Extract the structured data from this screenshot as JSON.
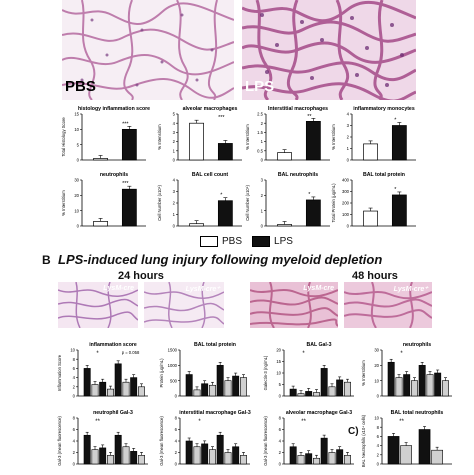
{
  "panel_a": {
    "histology_labels": [
      "PBS",
      "LPS"
    ]
  },
  "legend": {
    "items": [
      {
        "label": "PBS",
        "color": "#ffffff"
      },
      {
        "label": "LPS",
        "color": "#111111"
      }
    ]
  },
  "panel_b": {
    "letter": "B",
    "title": "LPS-induced lung injury following myeloid depletion",
    "time_24": "24 hours",
    "time_48": "48 hours",
    "histology_tags": [
      "LysM-cre",
      "LysM-cre⁺",
      "LysM-cre",
      "LysM-cre⁺"
    ]
  },
  "panel_c": {
    "letter": "C)"
  },
  "chart_data": [
    {
      "type": "bar",
      "title": "histology inflammation score",
      "ylabel": "Total Histology Score",
      "categories": [
        "PBS",
        "LPS"
      ],
      "values": [
        0.5,
        10
      ],
      "ylim": [
        0,
        15
      ],
      "yticks": [
        "0",
        "5",
        "10",
        "15"
      ],
      "sig": "***"
    },
    {
      "type": "bar",
      "title": "alveolar macrophages",
      "ylabel": "% Intensitium",
      "categories": [
        "PBS",
        "LPS"
      ],
      "values": [
        4,
        1.8
      ],
      "ylim": [
        0,
        5
      ],
      "yticks": [
        "0",
        "1",
        "2",
        "3",
        "4",
        "5"
      ],
      "sig": "***"
    },
    {
      "type": "bar",
      "title": "Interstitial macrophages",
      "ylabel": "% Interstitium",
      "categories": [
        "PBS",
        "LPS"
      ],
      "values": [
        0.4,
        2.1
      ],
      "ylim": [
        0,
        2.5
      ],
      "yticks": [
        "0",
        "0.5",
        "1",
        "1.5",
        "2",
        "2.5"
      ],
      "sig": "**"
    },
    {
      "type": "bar",
      "title": "inflammatory monocytes",
      "ylabel": "% Interstitium",
      "categories": [
        "PBS",
        "LPS"
      ],
      "values": [
        1.4,
        3
      ],
      "ylim": [
        0,
        4
      ],
      "yticks": [
        "0",
        "1",
        "2",
        "3",
        "4"
      ],
      "sig": "*"
    },
    {
      "type": "bar",
      "title": "neutrophils",
      "ylabel": "% Interstitium",
      "categories": [
        "PBS",
        "LPS"
      ],
      "values": [
        3,
        24
      ],
      "ylim": [
        0,
        30
      ],
      "yticks": [
        "0",
        "10",
        "20",
        "30"
      ],
      "sig": "***"
    },
    {
      "type": "bar",
      "title": "BAL cell count",
      "ylabel": "Cell Number (x10⁶)",
      "categories": [
        "PBS",
        "LPS"
      ],
      "values": [
        0.2,
        2.2
      ],
      "ylim": [
        0,
        4
      ],
      "yticks": [
        "0",
        "1",
        "2",
        "3",
        "4"
      ],
      "sig": "*"
    },
    {
      "type": "bar",
      "title": "BAL neutrophils",
      "ylabel": "Cell Number (x10⁶)",
      "categories": [
        "PBS",
        "LPS"
      ],
      "values": [
        0.1,
        1.7
      ],
      "ylim": [
        0,
        3
      ],
      "yticks": [
        "0",
        "1",
        "2",
        "3"
      ],
      "sig": "*"
    },
    {
      "type": "bar",
      "title": "BAL total protein",
      "ylabel": "Total Protein (μg/mL)",
      "categories": [
        "PBS",
        "LPS"
      ],
      "values": [
        130,
        270
      ],
      "ylim": [
        0,
        400
      ],
      "yticks": [
        "0",
        "100",
        "200",
        "300",
        "400"
      ],
      "sig": "*"
    },
    {
      "type": "bar",
      "title": "inflammation score",
      "ylabel": "Inflammation Score",
      "categories": [
        "24h PBS",
        "24h LPS",
        "48h PBS",
        "48h LPS"
      ],
      "series": [
        {
          "values": [
            6,
            3,
            7,
            4
          ]
        },
        {
          "values": [
            2.5,
            1.5,
            3,
            2
          ]
        }
      ],
      "ylim": [
        0,
        10
      ],
      "yticks": [
        "0",
        "2",
        "4",
        "6",
        "8",
        "10"
      ],
      "sig": "*",
      "annotation": "p = 0.058"
    },
    {
      "type": "bar",
      "title": "BAL total protein",
      "ylabel": "Protein (μg/mL)",
      "categories": [
        "24h PBS",
        "24h LPS",
        "48h PBS",
        "48h LPS"
      ],
      "series": [
        {
          "values": [
            700,
            400,
            1000,
            650
          ]
        },
        {
          "values": [
            200,
            350,
            500,
            600
          ]
        }
      ],
      "ylim": [
        0,
        1500
      ],
      "yticks": [
        "0",
        "500",
        "1000",
        "1500"
      ]
    },
    {
      "type": "bar",
      "title": "BAL Gal-3",
      "ylabel": "Galectin-3 (ng/mL)",
      "categories": [
        "24h PBS",
        "24h LPS",
        "48h PBS",
        "48h LPS"
      ],
      "series": [
        {
          "values": [
            3,
            2,
            12,
            7
          ]
        },
        {
          "values": [
            1,
            1.5,
            4,
            6
          ]
        }
      ],
      "ylim": [
        0,
        20
      ],
      "yticks": [
        "0",
        "5",
        "10",
        "15",
        "20"
      ],
      "sig": "*"
    },
    {
      "type": "bar",
      "title": "neutrophils",
      "ylabel": "% Interstitium",
      "categories": [
        "24h PBS",
        "24h LPS",
        "48h PBS",
        "48h LPS"
      ],
      "series": [
        {
          "values": [
            22,
            14,
            20,
            15
          ]
        },
        {
          "values": [
            12,
            10,
            14,
            10
          ]
        }
      ],
      "ylim": [
        0,
        30
      ],
      "yticks": [
        "0",
        "10",
        "20",
        "30"
      ],
      "sig": "*"
    },
    {
      "type": "bar",
      "title": "neutrophil Gal-3",
      "ylabel": "Gal-3 (mean fluorescence)",
      "categories": [
        "24h PBS",
        "24h LPS",
        "48h PBS",
        "48h LPS"
      ],
      "series": [
        {
          "values": [
            5,
            2.8,
            5,
            2.2
          ]
        },
        {
          "values": [
            2.5,
            1.5,
            3,
            1.5
          ]
        }
      ],
      "ylim": [
        0,
        8
      ],
      "yticks": [
        "0",
        "2",
        "4",
        "6",
        "8"
      ],
      "sig": "**"
    },
    {
      "type": "bar",
      "title": "interstitial macrophage Gal-3",
      "ylabel": "Gal-3 (mean fluorescence)",
      "categories": [
        "24h PBS",
        "24h LPS",
        "48h PBS",
        "48h LPS"
      ],
      "series": [
        {
          "values": [
            4,
            3.5,
            5,
            3
          ]
        },
        {
          "values": [
            3,
            2.5,
            2,
            1.5
          ]
        }
      ],
      "ylim": [
        0,
        8
      ],
      "yticks": [
        "0",
        "2",
        "4",
        "6",
        "8"
      ],
      "sig": "*"
    },
    {
      "type": "bar",
      "title": "alveolar macrophage Gal-3",
      "ylabel": "Gal-3 (mean fluorescence)",
      "categories": [
        "24h PBS",
        "24h LPS",
        "48h PBS",
        "48h LPS"
      ],
      "series": [
        {
          "values": [
            3,
            1.8,
            4.5,
            2.5
          ]
        },
        {
          "values": [
            1.5,
            1,
            2,
            1.5
          ]
        }
      ],
      "ylim": [
        0,
        8
      ],
      "yticks": [
        "0",
        "2",
        "4",
        "6",
        "8"
      ],
      "sig": "**"
    },
    {
      "type": "bar",
      "title": "BAL total neutrophils",
      "ylabel": "BAL Neutrophils (x10⁴ cells)",
      "categories": [
        "24h",
        "48h"
      ],
      "series": [
        {
          "values": [
            6,
            7.5
          ]
        },
        {
          "values": [
            4,
            3
          ]
        }
      ],
      "ylim": [
        0,
        10
      ],
      "yticks": [
        "0",
        "2",
        "4",
        "6",
        "8",
        "10"
      ],
      "sig": "**"
    }
  ]
}
